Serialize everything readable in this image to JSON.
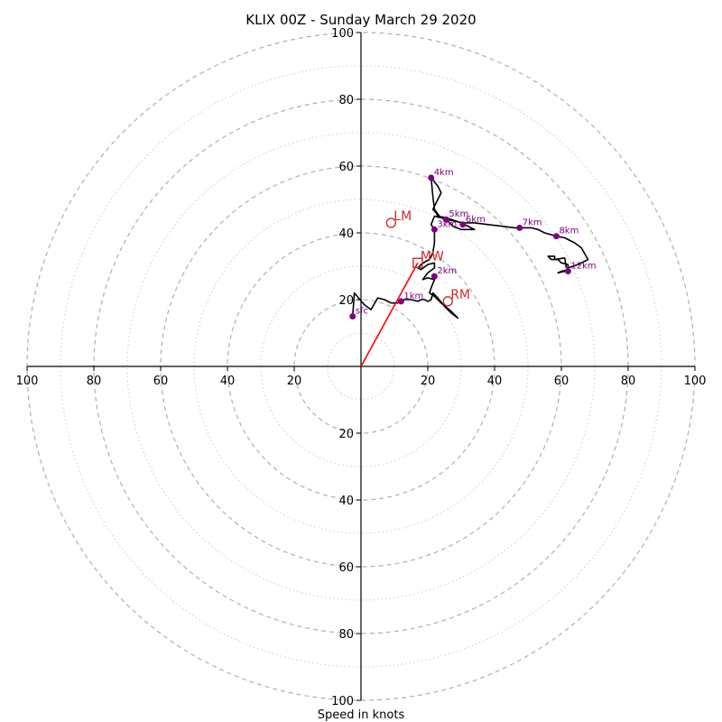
{
  "chart_data": {
    "type": "hodograph",
    "title": "KLIX 00Z - Sunday March 29 2020",
    "xlabel": "Speed in knots",
    "speed_unit": "knots",
    "xlim": [
      -100,
      100
    ],
    "ylim": [
      -100,
      100
    ],
    "major_rings": [
      20,
      40,
      60,
      80,
      100
    ],
    "minor_rings": [
      10,
      30,
      50,
      70,
      90
    ],
    "tick_values": [
      20,
      40,
      60,
      80,
      100
    ],
    "tick_labels": [
      "20",
      "40",
      "60",
      "80",
      "100"
    ],
    "grid": true,
    "colors": {
      "hodograph_line": "#000000",
      "height_markers": "#800080",
      "storm_motion": "#d62728",
      "mean_wind_vector": "#ff0000",
      "major_ring": "#b0b0b0",
      "minor_ring": "#cccccc"
    },
    "hodograph_trace": [
      [
        -2.5,
        15
      ],
      [
        -2,
        22
      ],
      [
        1,
        18.5
      ],
      [
        3,
        17
      ],
      [
        5,
        20.5
      ],
      [
        7,
        20
      ],
      [
        9,
        19
      ],
      [
        11,
        19
      ],
      [
        13,
        20
      ],
      [
        15,
        20
      ],
      [
        17,
        19.5
      ],
      [
        18,
        20
      ],
      [
        19,
        20
      ],
      [
        20,
        19.5
      ],
      [
        21,
        20
      ],
      [
        21.5,
        22
      ],
      [
        23,
        20.5
      ],
      [
        25,
        18
      ],
      [
        27,
        16
      ],
      [
        29,
        14.5
      ],
      [
        27,
        16.5
      ],
      [
        24,
        19
      ],
      [
        22,
        21
      ],
      [
        20.5,
        22
      ],
      [
        21,
        23.5
      ],
      [
        22,
        26
      ],
      [
        20,
        26.5
      ],
      [
        18.5,
        26
      ],
      [
        20,
        28
      ],
      [
        22,
        29.5
      ],
      [
        22,
        31
      ],
      [
        20,
        30.5
      ],
      [
        18,
        29
      ],
      [
        17,
        29.5
      ],
      [
        18,
        30.5
      ],
      [
        19.5,
        31.5
      ],
      [
        20.5,
        32
      ],
      [
        21.5,
        34
      ],
      [
        22,
        37
      ],
      [
        22,
        41
      ],
      [
        21,
        42.5
      ],
      [
        22,
        45
      ],
      [
        24,
        44.5
      ],
      [
        25.5,
        44
      ],
      [
        27.5,
        42
      ],
      [
        30,
        41
      ],
      [
        34,
        41
      ],
      [
        30,
        43
      ],
      [
        25.5,
        44.5
      ],
      [
        23,
        45
      ],
      [
        22.5,
        46
      ],
      [
        21.5,
        47
      ],
      [
        23,
        50
      ],
      [
        24,
        52
      ],
      [
        23,
        54
      ],
      [
        21,
        56.5
      ],
      [
        21.5,
        51
      ],
      [
        22,
        47
      ],
      [
        23.5,
        45
      ],
      [
        25.5,
        44
      ],
      [
        28,
        43.5
      ],
      [
        30.5,
        43
      ],
      [
        34,
        43
      ],
      [
        38,
        42.5
      ],
      [
        42,
        42
      ],
      [
        46,
        41.5
      ],
      [
        47.5,
        41.5
      ],
      [
        51,
        41.5
      ],
      [
        53,
        41
      ],
      [
        55,
        40
      ],
      [
        58.5,
        39
      ],
      [
        61,
        38.5
      ],
      [
        64,
        37
      ],
      [
        66,
        35.5
      ],
      [
        68,
        32
      ],
      [
        65,
        30.5
      ],
      [
        62,
        29.5
      ],
      [
        61,
        28.5
      ],
      [
        59,
        28
      ],
      [
        60,
        28.5
      ],
      [
        62,
        29
      ],
      [
        62,
        30.5
      ],
      [
        60,
        31
      ],
      [
        59,
        32
      ],
      [
        57,
        32
      ],
      [
        56,
        33
      ],
      [
        58,
        33
      ],
      [
        58,
        32
      ],
      [
        61,
        32.5
      ],
      [
        61.5,
        29.5
      ]
    ],
    "height_markers": [
      {
        "label": "sfc",
        "u": -2.5,
        "v": 15
      },
      {
        "label": "1km",
        "u": 12,
        "v": 19.5
      },
      {
        "label": "2km",
        "u": 22,
        "v": 27
      },
      {
        "label": "3km",
        "u": 22,
        "v": 41
      },
      {
        "label": "4km",
        "u": 21,
        "v": 56.5
      },
      {
        "label": "5km",
        "u": 25.5,
        "v": 44
      },
      {
        "label": "6km",
        "u": 30.5,
        "v": 42.5
      },
      {
        "label": "7km",
        "u": 47.5,
        "v": 41.5
      },
      {
        "label": "8km",
        "u": 58.5,
        "v": 39
      },
      {
        "label": "12km",
        "u": 62,
        "v": 28.5
      }
    ],
    "storm_motions": [
      {
        "label": "LM",
        "u": 9,
        "v": 43,
        "marker": "circle"
      },
      {
        "label": "MW",
        "u": 17,
        "v": 31,
        "marker": "square"
      },
      {
        "label": "RM",
        "u": 26,
        "v": 19.5,
        "marker": "circle"
      }
    ],
    "mean_wind_vector": {
      "u": 17,
      "v": 31
    }
  }
}
